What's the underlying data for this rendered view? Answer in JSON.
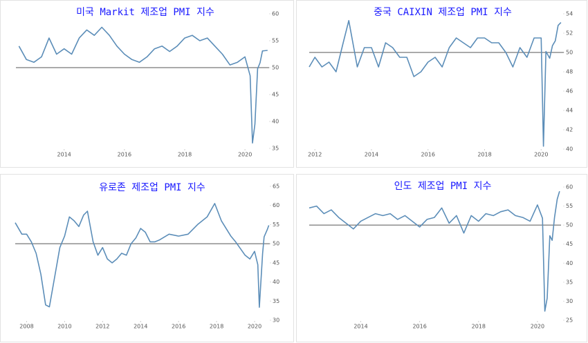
{
  "chart_data": [
    {
      "type": "line",
      "title": "미국 Markit 제조업 PMI 지수",
      "color": "#5b8db8",
      "reference_line": 50,
      "xlim": [
        2012.4,
        2020.8
      ],
      "xticks": [
        2014,
        2016,
        2018,
        2020
      ],
      "ylim": [
        35,
        60
      ],
      "yticks": [
        35,
        40,
        45,
        50,
        55,
        60
      ],
      "x": [
        2012.5,
        2012.75,
        2013.0,
        2013.25,
        2013.5,
        2013.75,
        2014.0,
        2014.25,
        2014.5,
        2014.75,
        2015.0,
        2015.25,
        2015.5,
        2015.75,
        2016.0,
        2016.25,
        2016.5,
        2016.75,
        2017.0,
        2017.25,
        2017.5,
        2017.75,
        2018.0,
        2018.25,
        2018.5,
        2018.75,
        2019.0,
        2019.25,
        2019.5,
        2019.75,
        2020.0,
        2020.17,
        2020.25,
        2020.33,
        2020.42,
        2020.5,
        2020.58,
        2020.75
      ],
      "values": [
        54,
        51.5,
        51,
        52,
        55.5,
        52.5,
        53.5,
        52.5,
        55.5,
        57,
        56,
        57.5,
        56,
        54,
        52.5,
        51.5,
        51,
        52,
        53.5,
        54,
        53,
        54,
        55.5,
        56,
        55,
        55.5,
        54,
        52.5,
        50.5,
        51,
        52,
        48.5,
        36,
        39.5,
        49.8,
        50.9,
        53.1,
        53.2
      ]
    },
    {
      "type": "line",
      "title": "중국 CAIXIN 제조업 PMI 지수",
      "color": "#5b8db8",
      "reference_line": 50,
      "xlim": [
        2011.8,
        2020.8
      ],
      "xticks": [
        2012,
        2014,
        2016,
        2018,
        2020
      ],
      "ylim": [
        40,
        54
      ],
      "yticks": [
        40,
        42,
        44,
        46,
        48,
        50,
        52,
        54
      ],
      "x": [
        2011.8,
        2012.0,
        2012.25,
        2012.5,
        2012.75,
        2013.0,
        2013.2,
        2013.5,
        2013.75,
        2014.0,
        2014.25,
        2014.5,
        2014.75,
        2015.0,
        2015.25,
        2015.5,
        2015.75,
        2016.0,
        2016.25,
        2016.5,
        2016.75,
        2017.0,
        2017.25,
        2017.5,
        2017.75,
        2018.0,
        2018.25,
        2018.5,
        2018.75,
        2019.0,
        2019.25,
        2019.5,
        2019.75,
        2020.0,
        2020.08,
        2020.17,
        2020.3,
        2020.4,
        2020.5,
        2020.6,
        2020.7
      ],
      "values": [
        48.5,
        49.5,
        48.5,
        49,
        48,
        51,
        53.3,
        48.5,
        50.5,
        50.5,
        48.5,
        51,
        50.5,
        49.5,
        49.5,
        47.5,
        48,
        49,
        49.5,
        48.5,
        50.5,
        51.5,
        51,
        50.5,
        51.5,
        51.5,
        51,
        51,
        50,
        48.5,
        50.5,
        49.5,
        51.5,
        51.5,
        40.3,
        50.1,
        49.4,
        50.7,
        51.2,
        52.8,
        53.1
      ]
    },
    {
      "type": "line",
      "title": "유로존 제조업 PMI 지수",
      "color": "#5b8db8",
      "reference_line": 50,
      "xlim": [
        2007.4,
        2020.8
      ],
      "xticks": [
        2008,
        2010,
        2012,
        2014,
        2016,
        2018,
        2020
      ],
      "ylim": [
        30,
        65
      ],
      "yticks": [
        30,
        35,
        40,
        45,
        50,
        55,
        60,
        65
      ],
      "x": [
        2007.4,
        2007.75,
        2008.0,
        2008.25,
        2008.5,
        2008.75,
        2009.0,
        2009.2,
        2009.5,
        2009.75,
        2010.0,
        2010.25,
        2010.5,
        2010.75,
        2011.0,
        2011.2,
        2011.5,
        2011.75,
        2012.0,
        2012.25,
        2012.5,
        2012.75,
        2013.0,
        2013.25,
        2013.5,
        2013.75,
        2014.0,
        2014.25,
        2014.5,
        2014.75,
        2015.0,
        2015.5,
        2016.0,
        2016.5,
        2017.0,
        2017.5,
        2017.9,
        2018.25,
        2018.75,
        2019.0,
        2019.5,
        2019.75,
        2020.0,
        2020.17,
        2020.25,
        2020.42,
        2020.5,
        2020.67,
        2020.75
      ],
      "values": [
        55.5,
        52.5,
        52.5,
        50.5,
        47.5,
        42,
        34,
        33.5,
        42,
        49,
        52,
        57,
        56,
        54.5,
        57.5,
        58.5,
        50.5,
        47,
        49,
        46,
        45,
        46,
        47.5,
        47,
        50,
        51.5,
        54,
        53,
        50.5,
        50.5,
        51,
        52.5,
        52,
        52.5,
        55,
        57,
        60.5,
        56,
        52,
        50.5,
        47,
        46,
        48,
        44.5,
        33.4,
        47.4,
        51.8,
        53.7,
        54.8
      ]
    },
    {
      "type": "line",
      "title": "인도 제조업 PMI 지수",
      "color": "#5b8db8",
      "reference_line": 50,
      "xlim": [
        2012.25,
        2020.8
      ],
      "xticks": [
        2014,
        2016,
        2018,
        2020
      ],
      "ylim": [
        25,
        60
      ],
      "yticks": [
        25,
        30,
        35,
        40,
        45,
        50,
        55,
        60
      ],
      "x": [
        2012.25,
        2012.5,
        2012.75,
        2013.0,
        2013.25,
        2013.5,
        2013.75,
        2014.0,
        2014.25,
        2014.5,
        2014.75,
        2015.0,
        2015.25,
        2015.5,
        2015.75,
        2016.0,
        2016.25,
        2016.5,
        2016.75,
        2017.0,
        2017.25,
        2017.5,
        2017.75,
        2018.0,
        2018.25,
        2018.5,
        2018.75,
        2019.0,
        2019.25,
        2019.5,
        2019.75,
        2020.0,
        2020.17,
        2020.25,
        2020.33,
        2020.42,
        2020.5,
        2020.58,
        2020.67,
        2020.75
      ],
      "values": [
        54.5,
        55,
        53,
        54,
        52,
        50.5,
        49,
        51,
        52,
        53,
        52.5,
        53,
        51.5,
        52.5,
        51,
        49.5,
        51.5,
        52,
        54.5,
        50.5,
        52.5,
        47.9,
        52.5,
        51,
        53,
        52.5,
        53.5,
        54,
        52.5,
        52,
        51,
        55.3,
        51.8,
        27.4,
        30.8,
        47.2,
        46,
        52,
        56.8,
        58.9
      ]
    }
  ]
}
